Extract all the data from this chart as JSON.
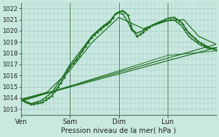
{
  "title": "",
  "xlabel": "Pression niveau de la mer( hPa )",
  "ylabel": "",
  "bg_color": "#c8e8e0",
  "grid_color": "#a0c8c0",
  "line_color": "#1a6b1a",
  "ylim": [
    1012.5,
    1022.5
  ],
  "yticks": [
    1013,
    1014,
    1015,
    1016,
    1017,
    1018,
    1019,
    1020,
    1021,
    1022
  ],
  "xtick_labels": [
    "Ven",
    "Sam",
    "Dim",
    "Lun"
  ],
  "xtick_positions": [
    0,
    96,
    192,
    288
  ],
  "xlim": [
    0,
    384
  ],
  "vlines": [
    0,
    96,
    192,
    288
  ]
}
